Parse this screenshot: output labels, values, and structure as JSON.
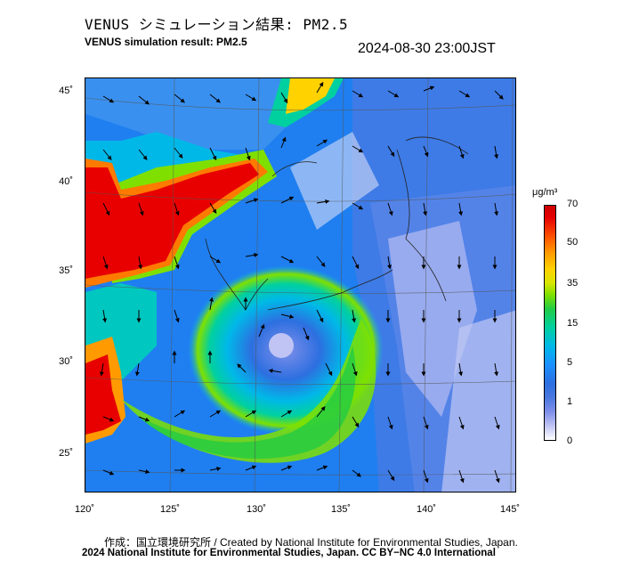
{
  "header": {
    "title_jp": "VENUS シミュレーション結果: PM2.5",
    "title_en": "VENUS simulation result: PM2.5",
    "timestamp": "2024-08-30 23:00JST"
  },
  "map": {
    "lat_ticks": [
      "45˚",
      "40˚",
      "35˚",
      "30˚",
      "25˚"
    ],
    "lon_ticks": [
      "120˚",
      "125˚",
      "130˚",
      "135˚",
      "140˚",
      "145˚"
    ]
  },
  "colorbar": {
    "unit": "μg/m³",
    "labels": [
      "70",
      "50",
      "35",
      "15",
      "5",
      "1",
      "0"
    ]
  },
  "footer": {
    "line1": "作成：国立環境研究所 / Created by National Institute for Environmental Studies, Japan.",
    "line2": "2024 National Institute for Environmental Studies, Japan. CC BY−NC 4.0 International"
  }
}
